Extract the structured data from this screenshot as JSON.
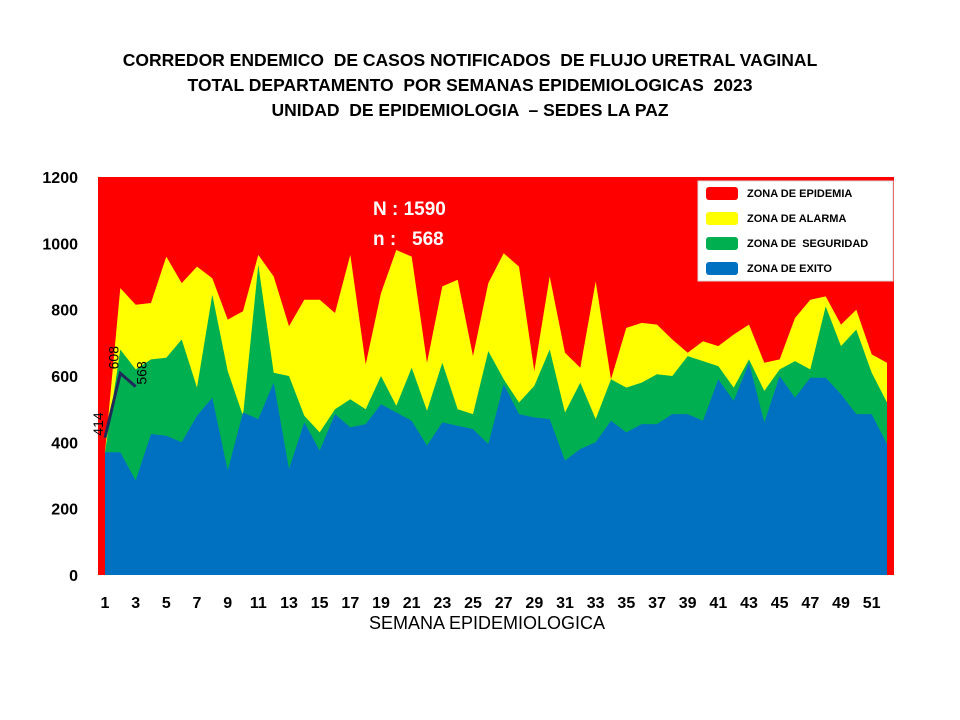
{
  "title_lines": [
    "CORREDOR ENDEMICO  DE CASOS NOTIFICADOS  DE FLUJO URETRAL VAGINAL",
    "TOTAL DEPARTAMENTO  POR SEMANAS EPIDEMIOLOGICAS  2023",
    "UNIDAD  DE EPIDEMIOLOGIA  – SEDES LA PAZ"
  ],
  "chart_data": {
    "type": "area",
    "xlabel": "SEMANA EPIDEMIOLOGICA",
    "ylabel": "",
    "ylim": [
      0,
      1200
    ],
    "yticks": [
      0,
      200,
      400,
      600,
      800,
      1000,
      1200
    ],
    "xticks": [
      1,
      3,
      5,
      7,
      9,
      11,
      13,
      15,
      17,
      19,
      21,
      23,
      25,
      27,
      29,
      31,
      33,
      35,
      37,
      39,
      41,
      43,
      45,
      47,
      49,
      51
    ],
    "x": [
      1,
      2,
      3,
      4,
      5,
      6,
      7,
      8,
      9,
      10,
      11,
      12,
      13,
      14,
      15,
      16,
      17,
      18,
      19,
      20,
      21,
      22,
      23,
      24,
      25,
      26,
      27,
      28,
      29,
      30,
      31,
      32,
      33,
      34,
      35,
      36,
      37,
      38,
      39,
      40,
      41,
      42,
      43,
      44,
      45,
      46,
      47,
      48,
      49,
      50,
      51,
      52
    ],
    "zones": [
      {
        "name": "ZONA DE EXITO",
        "color": "#0070C0",
        "upper": [
          370,
          370,
          285,
          425,
          420,
          400,
          480,
          535,
          315,
          490,
          470,
          580,
          320,
          460,
          375,
          485,
          445,
          455,
          515,
          490,
          465,
          390,
          460,
          450,
          440,
          395,
          575,
          485,
          475,
          470,
          345,
          380,
          400,
          465,
          430,
          455,
          455,
          485,
          485,
          465,
          590,
          525,
          640,
          460,
          600,
          535,
          595,
          595,
          545,
          485,
          485,
          395
        ]
      },
      {
        "name": "ZONA DE  SEGURIDAD",
        "color": "#00B050",
        "upper": [
          370,
          680,
          620,
          650,
          655,
          710,
          565,
          845,
          615,
          480,
          935,
          610,
          600,
          480,
          430,
          500,
          530,
          500,
          600,
          510,
          625,
          495,
          640,
          500,
          485,
          675,
          590,
          520,
          570,
          680,
          490,
          580,
          470,
          590,
          565,
          580,
          605,
          600,
          660,
          645,
          630,
          565,
          650,
          555,
          620,
          645,
          620,
          810,
          690,
          740,
          610,
          520
        ]
      },
      {
        "name": "ZONA DE ALARMA",
        "color": "#FFFF00",
        "upper": [
          370,
          865,
          815,
          820,
          960,
          880,
          930,
          895,
          770,
          795,
          965,
          900,
          750,
          830,
          830,
          790,
          965,
          635,
          850,
          980,
          960,
          640,
          870,
          890,
          660,
          880,
          970,
          930,
          615,
          900,
          670,
          625,
          885,
          590,
          745,
          760,
          755,
          710,
          670,
          705,
          690,
          725,
          755,
          640,
          650,
          775,
          830,
          840,
          755,
          800,
          665,
          640
        ]
      },
      {
        "name": "ZONA DE EPIDEMIA",
        "color": "#FF0000",
        "upper": 1200
      }
    ],
    "cases_series": {
      "x": [
        1,
        2,
        3
      ],
      "values": [
        414,
        608,
        568
      ],
      "labels": [
        "414",
        "608",
        "568"
      ]
    },
    "annotations": [
      "N : 1590",
      "n :   568"
    ],
    "legend_position": "top-right",
    "grid": false
  }
}
